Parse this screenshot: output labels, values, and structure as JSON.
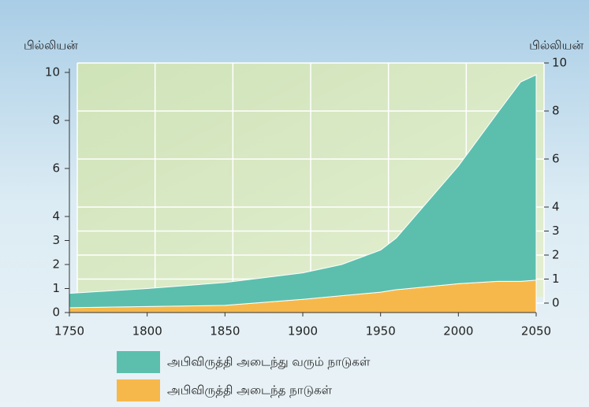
{
  "chart_data": {
    "type": "area",
    "y_label": "பில்லியன்",
    "x": [
      1750,
      1800,
      1850,
      1900,
      1925,
      1950,
      1960,
      2000,
      2025,
      2040,
      2050
    ],
    "series": [
      {
        "name": "அபிவிருத்தி அடைந்து வரும் நாடுகள்",
        "color": "#5cbfae",
        "values": [
          0.6,
          0.75,
          0.95,
          1.1,
          1.3,
          1.75,
          2.15,
          4.9,
          7.0,
          8.3,
          8.55
        ]
      },
      {
        "name": "அபிவிருத்தி அடைந்த நாடுகள்",
        "color": "#f7b84b",
        "values": [
          0.2,
          0.25,
          0.3,
          0.55,
          0.7,
          0.85,
          0.95,
          1.2,
          1.3,
          1.3,
          1.35
        ]
      }
    ],
    "stacked": true,
    "xlim": [
      1750,
      2050
    ],
    "xticks": [
      1750,
      1800,
      1850,
      1900,
      1950,
      2000,
      2050
    ],
    "ylim": [
      0,
      10
    ],
    "yticks": [
      0,
      1,
      2,
      3,
      4,
      6,
      8,
      10
    ],
    "grid": true
  }
}
